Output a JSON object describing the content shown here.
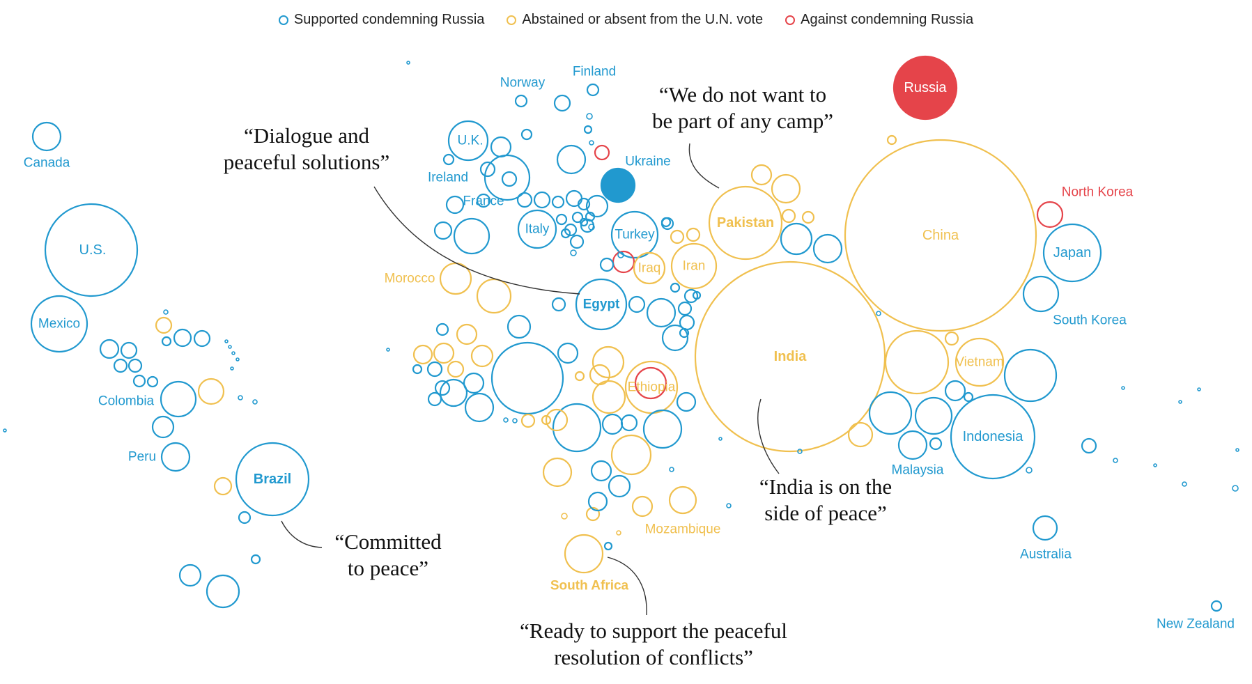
{
  "legend": {
    "supported": "Supported condemning Russia",
    "abstained": "Abstained or absent from the U.N. vote",
    "against": "Against condemning Russia"
  },
  "colors": {
    "supported": "#2199cf",
    "abstained": "#f0c04f",
    "against": "#e5444a"
  },
  "chart_data": {
    "type": "bubble-map",
    "encoding": "circle area proportional to population; position approximates geography",
    "labels": {
      "canada": "Canada",
      "us": "U.S.",
      "mexico": "Mexico",
      "colombia": "Colombia",
      "peru": "Peru",
      "brazil": "Brazil",
      "norway": "Norway",
      "finland": "Finland",
      "uk": "U.K.",
      "ireland": "Ireland",
      "france": "France",
      "italy": "Italy",
      "ukraine": "Ukraine",
      "turkey": "Turkey",
      "iraq": "Iraq",
      "iran": "Iran",
      "morocco": "Morocco",
      "egypt": "Egypt",
      "ethiopia": "Ethiopia",
      "mozambique": "Mozambique",
      "south_africa": "South Africa",
      "pakistan": "Pakistan",
      "india": "India",
      "russia": "Russia",
      "china": "China",
      "north_korea": "North Korea",
      "japan": "Japan",
      "south_korea": "South Korea",
      "vietnam": "Vietnam",
      "malaysia": "Malaysia",
      "indonesia": "Indonesia",
      "australia": "Australia",
      "new_zealand": "New Zealand"
    },
    "quotes": {
      "egypt": [
        "“Dialogue and",
        "peaceful solutions”"
      ],
      "pakistan": [
        "“We do not want to",
        "be part of any camp”"
      ],
      "india": [
        "“India is on the",
        "side of peace”"
      ],
      "brazil": [
        "“Committed",
        "to peace”"
      ],
      "south_africa": [
        "“Ready to support the peaceful",
        "resolution of conflicts”"
      ]
    },
    "status_by_country": {
      "Canada": "supported",
      "U.S.": "supported",
      "Mexico": "supported",
      "Colombia": "supported",
      "Peru": "supported",
      "Brazil": "supported",
      "Norway": "supported",
      "Finland": "supported",
      "U.K.": "supported",
      "Ireland": "supported",
      "France": "supported",
      "Italy": "supported",
      "Ukraine": "supported",
      "Turkey": "supported",
      "Egypt": "supported",
      "Japan": "supported",
      "South Korea": "supported",
      "Malaysia": "supported",
      "Indonesia": "supported",
      "Australia": "supported",
      "New Zealand": "supported",
      "Iraq": "abstained",
      "Iran": "abstained",
      "Morocco": "abstained",
      "Ethiopia": "abstained",
      "Mozambique": "abstained",
      "South Africa": "abstained",
      "Pakistan": "abstained",
      "India": "abstained",
      "China": "abstained",
      "Vietnam": "abstained",
      "Russia": "against",
      "North Korea": "against"
    }
  }
}
